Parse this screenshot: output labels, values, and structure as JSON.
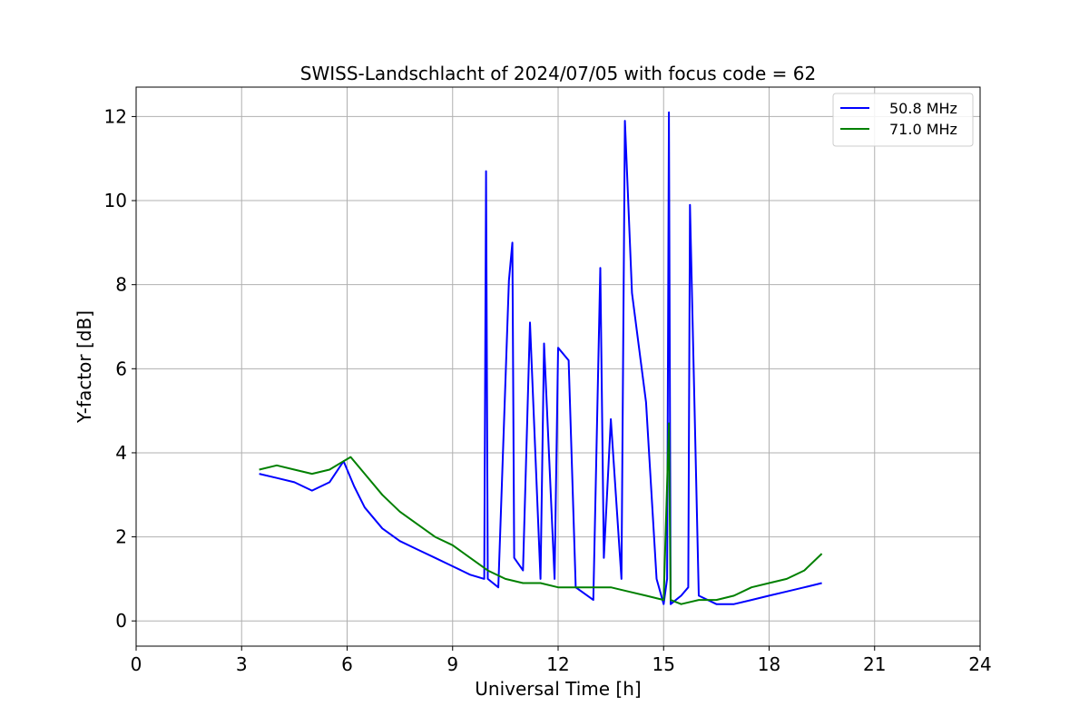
{
  "chart_data": {
    "type": "line",
    "title": "SWISS-Landschlacht of 2024/07/05 with focus code = 62",
    "xlabel": "Universal Time [h]",
    "ylabel": "Y-factor [dB]",
    "xlim": [
      0,
      24
    ],
    "ylim": [
      -0.6,
      12.7
    ],
    "xticks": [
      0,
      3,
      6,
      9,
      12,
      15,
      18,
      21,
      24
    ],
    "yticks": [
      0,
      2,
      4,
      6,
      8,
      10,
      12
    ],
    "grid": true,
    "legend_position": "top-right",
    "series": [
      {
        "name": "50.8 MHz",
        "color": "#0000ff",
        "x": [
          3.5,
          4.0,
          4.5,
          5.0,
          5.5,
          5.9,
          6.2,
          6.5,
          7.0,
          7.5,
          8.0,
          8.5,
          9.0,
          9.5,
          9.9,
          9.95,
          10.0,
          10.3,
          10.6,
          10.7,
          10.75,
          11.0,
          11.2,
          11.5,
          11.6,
          11.9,
          12.0,
          12.3,
          12.5,
          13.0,
          13.2,
          13.3,
          13.5,
          13.8,
          13.9,
          14.1,
          14.5,
          14.8,
          15.0,
          15.1,
          15.15,
          15.2,
          15.5,
          15.7,
          15.75,
          16.0,
          16.5,
          17.0,
          17.5,
          18.0,
          18.5,
          19.0,
          19.5
        ],
        "y": [
          3.5,
          3.4,
          3.3,
          3.1,
          3.3,
          3.8,
          3.2,
          2.7,
          2.2,
          1.9,
          1.7,
          1.5,
          1.3,
          1.1,
          1.0,
          10.7,
          1.0,
          0.8,
          8.1,
          9.0,
          1.5,
          1.2,
          7.1,
          1.0,
          6.6,
          1.0,
          6.5,
          6.2,
          0.8,
          0.5,
          8.4,
          1.5,
          4.8,
          1.0,
          11.9,
          7.8,
          5.2,
          1.0,
          0.4,
          1.0,
          12.1,
          0.4,
          0.6,
          0.8,
          9.9,
          0.6,
          0.4,
          0.4,
          0.5,
          0.6,
          0.7,
          0.8,
          0.9
        ]
      },
      {
        "name": "71.0 MHz",
        "color": "#008000",
        "x": [
          3.5,
          4.0,
          4.5,
          5.0,
          5.5,
          5.9,
          6.1,
          6.5,
          7.0,
          7.5,
          8.0,
          8.5,
          9.0,
          9.5,
          10.0,
          10.5,
          11.0,
          11.5,
          12.0,
          12.5,
          13.0,
          13.5,
          14.0,
          14.5,
          15.0,
          15.15,
          15.2,
          15.5,
          16.0,
          16.5,
          17.0,
          17.5,
          18.0,
          18.5,
          19.0,
          19.5
        ],
        "y": [
          3.6,
          3.7,
          3.6,
          3.5,
          3.6,
          3.8,
          3.9,
          3.5,
          3.0,
          2.6,
          2.3,
          2.0,
          1.8,
          1.5,
          1.2,
          1.0,
          0.9,
          0.9,
          0.8,
          0.8,
          0.8,
          0.8,
          0.7,
          0.6,
          0.5,
          4.7,
          0.5,
          0.4,
          0.5,
          0.5,
          0.6,
          0.8,
          0.9,
          1.0,
          1.2,
          1.6
        ]
      }
    ]
  }
}
